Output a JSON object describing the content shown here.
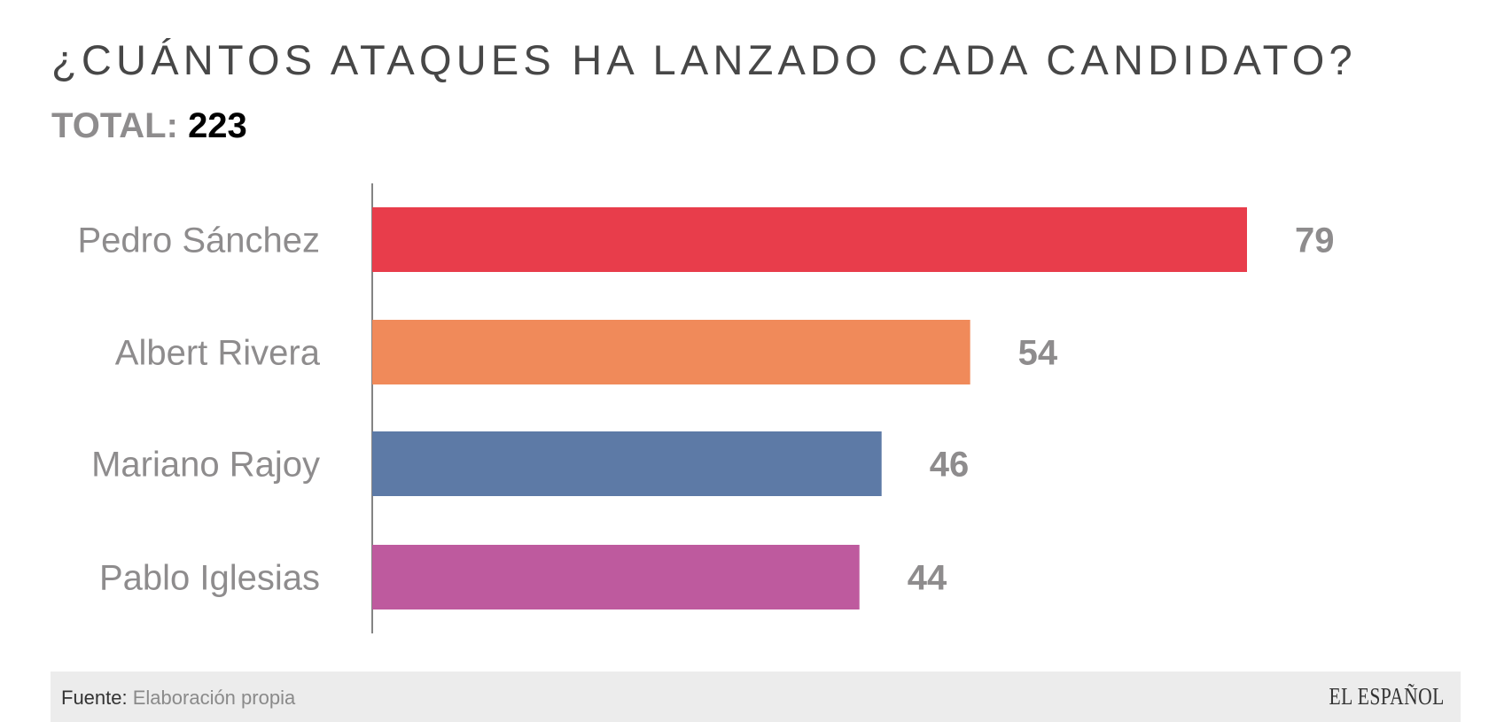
{
  "chart_data": {
    "type": "bar",
    "orientation": "horizontal",
    "title": "¿CUÁNTOS ATAQUES HA LANZADO CADA CANDIDATO?",
    "subtitle_label": "TOTAL:",
    "subtitle_value": "223",
    "categories": [
      "Pedro Sánchez",
      "Albert Rivera",
      "Mariano Rajoy",
      "Pablo Iglesias"
    ],
    "values": [
      79,
      54,
      46,
      44
    ],
    "colors": [
      "#E83D4B",
      "#F08A5A",
      "#5D7AA6",
      "#BE5A9E"
    ],
    "xlim": [
      0,
      79
    ],
    "grid": false,
    "legend": "none"
  },
  "footer": {
    "source_label": "Fuente:",
    "source_value": "Elaboración propia",
    "logo": "EL ESPAÑOL"
  }
}
